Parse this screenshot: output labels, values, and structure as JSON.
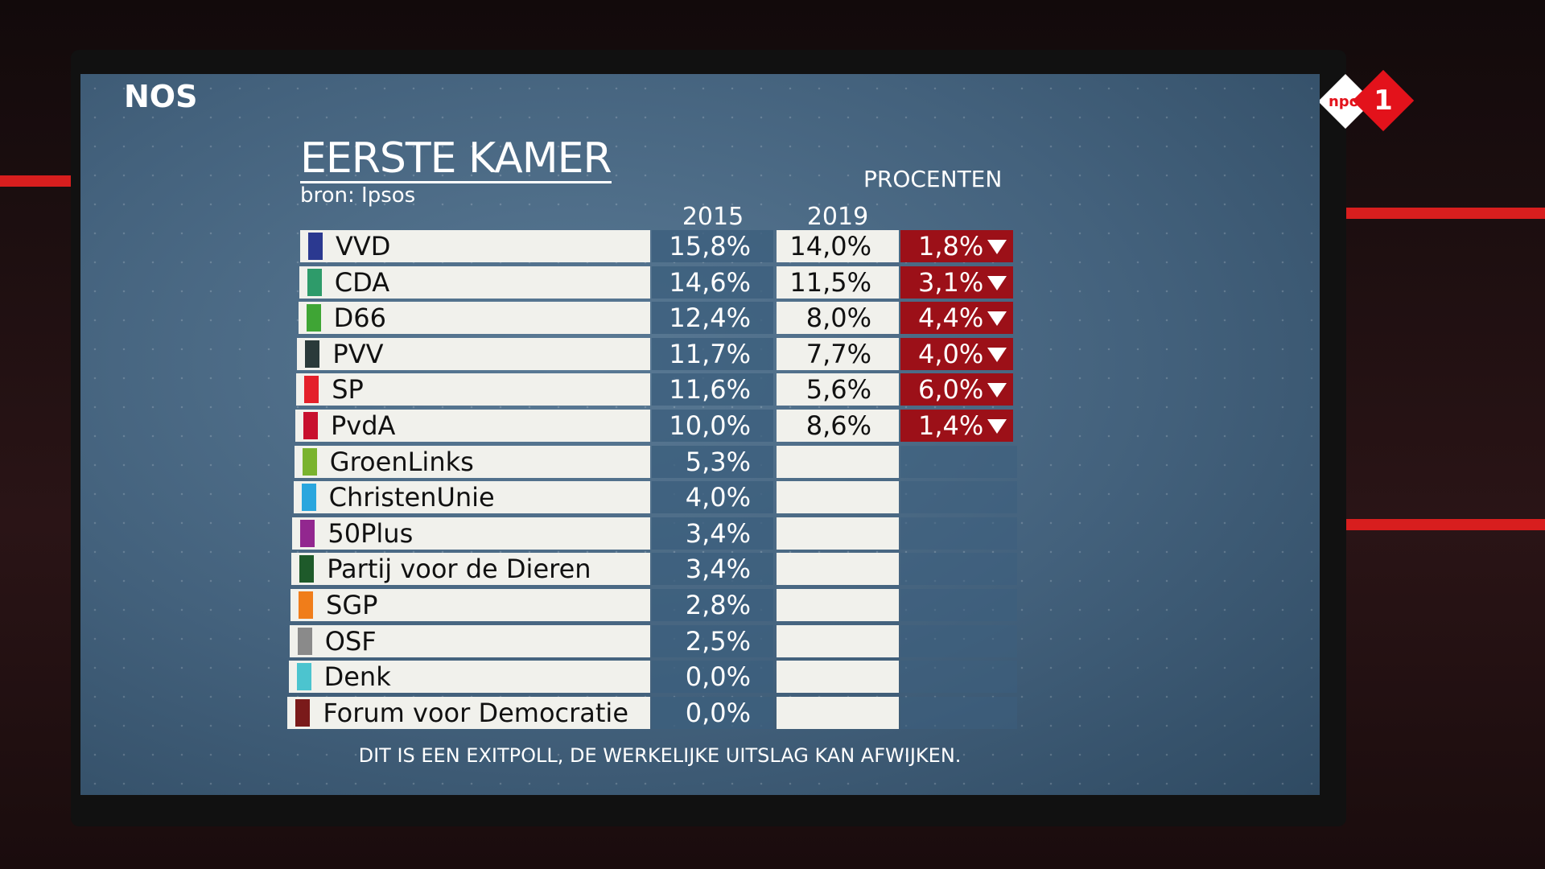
{
  "logo": "NOS",
  "channel": {
    "brand": "npo",
    "number": "1"
  },
  "header": {
    "title": "EERSTE KAMER",
    "source": "bron: Ipsos",
    "unit": "PROCENTEN"
  },
  "table": {
    "columns": [
      "2015",
      "2019"
    ],
    "rows": [
      {
        "party": "VVD",
        "color": "#2b3990",
        "v2015": "15,8%",
        "v2019": "14,0%",
        "change": "1,8%"
      },
      {
        "party": "CDA",
        "color": "#2e9b6a",
        "v2015": "14,6%",
        "v2019": "11,5%",
        "change": "3,1%"
      },
      {
        "party": "D66",
        "color": "#3fa535",
        "v2015": "12,4%",
        "v2019": "8,0%",
        "change": "4,4%"
      },
      {
        "party": "PVV",
        "color": "#2a3a3a",
        "v2015": "11,7%",
        "v2019": "7,7%",
        "change": "4,0%"
      },
      {
        "party": "SP",
        "color": "#e4202a",
        "v2015": "11,6%",
        "v2019": "5,6%",
        "change": "6,0%"
      },
      {
        "party": "PvdA",
        "color": "#c8102e",
        "v2015": "10,0%",
        "v2019": "8,6%",
        "change": "1,4%"
      },
      {
        "party": "GroenLinks",
        "color": "#7ab32e",
        "v2015": "5,3%"
      },
      {
        "party": "ChristenUnie",
        "color": "#2aa6de",
        "v2015": "4,0%"
      },
      {
        "party": "50Plus",
        "color": "#92278f",
        "v2015": "3,4%"
      },
      {
        "party": "Partij voor de Dieren",
        "color": "#1e5a2a",
        "v2015": "3,4%"
      },
      {
        "party": "SGP",
        "color": "#f07d1a",
        "v2015": "2,8%"
      },
      {
        "party": "OSF",
        "color": "#8a8a8a",
        "v2015": "2,5%"
      },
      {
        "party": "Denk",
        "color": "#4cc4cf",
        "v2015": "0,0%"
      },
      {
        "party": "Forum voor Democratie",
        "color": "#7a1a1a",
        "v2015": "0,0%"
      }
    ]
  },
  "footer": "DIT IS EEN EXITPOLL, DE WERKELIJKE UITSLAG KAN AFWIJKEN."
}
